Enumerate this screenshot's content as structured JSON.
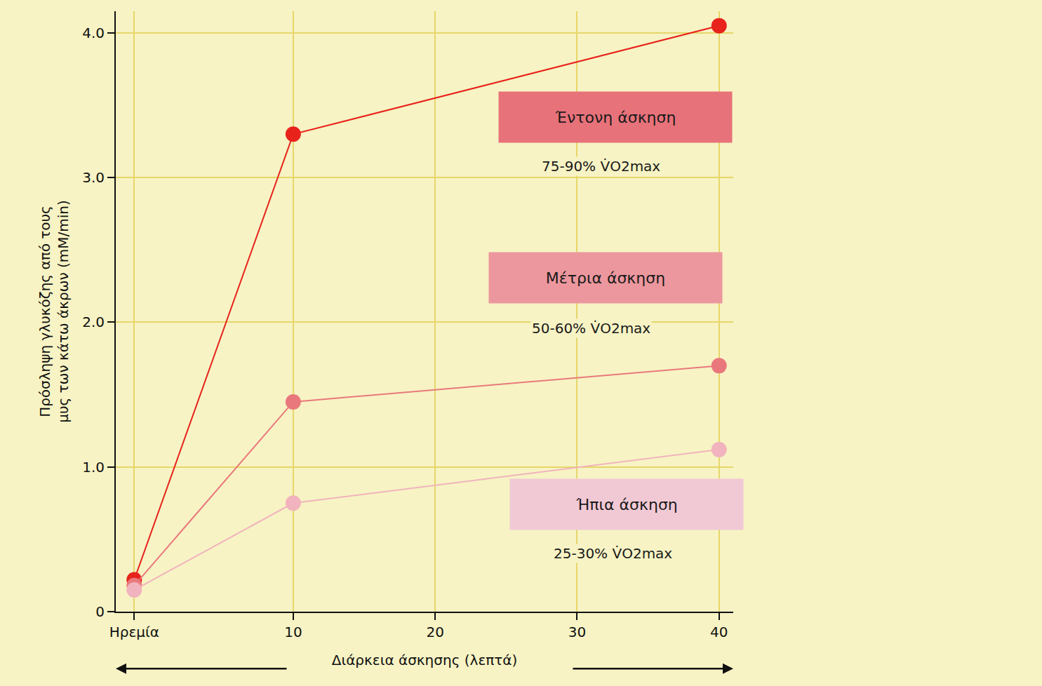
{
  "chart_data": {
    "type": "line",
    "x_label": "Διάρκεια άσκησης (λεπτά)",
    "y_label": "Πρόσληψη γλυκόζης από τους μυς των κάτω άκρων (mM/min)",
    "xlim": [
      -2.5,
      41
    ],
    "xticks": [
      {
        "value": -1.2,
        "label": "Ηρεμία"
      },
      10,
      20,
      30,
      40
    ],
    "ylim": [
      0,
      4.15
    ],
    "yticks": [
      0,
      {
        "value": 1,
        "label": "1.0"
      },
      {
        "value": 2,
        "label": "2.0"
      },
      {
        "value": 3,
        "label": "3.0"
      },
      {
        "value": 4,
        "label": "4.0"
      }
    ],
    "grid": true,
    "marker": "circle",
    "series": [
      {
        "name": "Έντονη άσκηση",
        "intensity": "75-90% V̇O2max",
        "color": "#e8231c",
        "x": [
          -1.2,
          10,
          40
        ],
        "values": [
          0.22,
          3.3,
          4.05
        ]
      },
      {
        "name": "Μέτρια άσκηση",
        "intensity": "50-60% V̇O2max",
        "color": "#e9787c",
        "x": [
          -1.2,
          10,
          40
        ],
        "values": [
          0.18,
          1.45,
          1.7
        ]
      },
      {
        "name": "Ήπια άσκηση",
        "intensity": "25-30% V̇O2max",
        "color": "#f1b3bd",
        "x": [
          -1.2,
          10,
          40
        ],
        "values": [
          0.15,
          0.75,
          1.12
        ]
      }
    ]
  }
}
